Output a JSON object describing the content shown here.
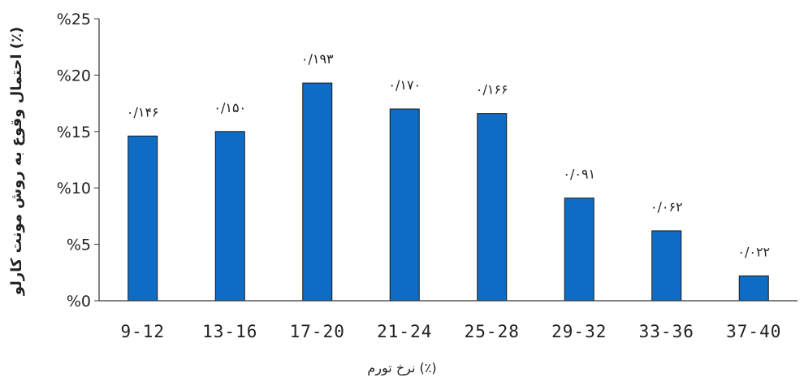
{
  "chart_data": {
    "type": "bar",
    "categories": [
      "9-12",
      "13-16",
      "17-20",
      "21-24",
      "25-28",
      "29-32",
      "33-36",
      "37-40"
    ],
    "values": [
      14.6,
      15.0,
      19.3,
      17.0,
      16.6,
      9.1,
      6.2,
      2.2
    ],
    "data_labels": [
      "۰/۱۴۶",
      "۰/۱۵۰",
      "۰/۱۹۳",
      "۰/۱۷۰",
      "۰/۱۶۶",
      "۰/۰۹۱",
      "۰/۰۶۲",
      "۰/۰۲۲"
    ],
    "yticks": [
      0,
      5,
      10,
      15,
      20,
      25
    ],
    "ytick_labels": [
      "%0",
      "%5",
      "%10",
      "%15",
      "%20",
      "%25"
    ],
    "ylim": [
      0,
      25
    ],
    "xlabel": "نرخ تورم (٪)",
    "ylabel": "احتمال وقوع به روش مونت کارلو (٪)",
    "bar_color": "#0F6CC4",
    "bar_edge": "#1a1a1a",
    "grid": false
  }
}
